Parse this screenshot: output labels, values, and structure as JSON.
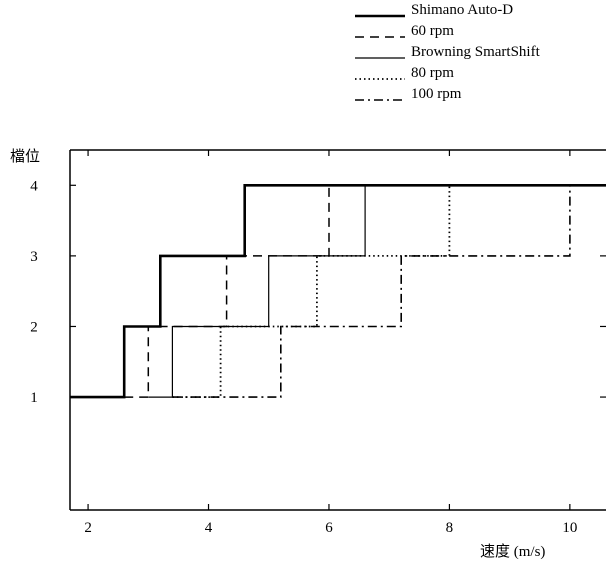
{
  "chart_data": {
    "type": "line",
    "xlabel": "速度 (m/s)",
    "ylabel": "檔位",
    "xlim": [
      1.7,
      10.6
    ],
    "ylim": [
      -0.6,
      4.5
    ],
    "x_ticks": [
      2,
      4,
      6,
      8,
      10
    ],
    "y_ticks": [
      1,
      2,
      3,
      4
    ],
    "grid": false,
    "legend": "top-right",
    "series": [
      {
        "name": "Shimano Auto-D",
        "style": "solid-thick",
        "points": [
          [
            1.7,
            1
          ],
          [
            2.6,
            1
          ],
          [
            2.6,
            2
          ],
          [
            3.2,
            2
          ],
          [
            3.2,
            3
          ],
          [
            4.6,
            3
          ],
          [
            4.6,
            4
          ],
          [
            10.6,
            4
          ]
        ]
      },
      {
        "name": "60 rpm",
        "style": "dashed",
        "points": [
          [
            2.6,
            1
          ],
          [
            3.0,
            1
          ],
          [
            3.0,
            2
          ],
          [
            4.3,
            2
          ],
          [
            4.3,
            3
          ],
          [
            6.0,
            3
          ],
          [
            6.0,
            4
          ],
          [
            6.6,
            4
          ]
        ]
      },
      {
        "name": "Browning SmartShift",
        "style": "solid-thin",
        "points": [
          [
            3.0,
            1
          ],
          [
            3.4,
            1
          ],
          [
            3.4,
            2
          ],
          [
            5.0,
            2
          ],
          [
            5.0,
            3
          ],
          [
            6.6,
            3
          ],
          [
            6.6,
            4
          ],
          [
            8.0,
            4
          ]
        ]
      },
      {
        "name": "80 rpm",
        "style": "dotted",
        "points": [
          [
            3.4,
            1
          ],
          [
            4.2,
            1
          ],
          [
            4.2,
            2
          ],
          [
            5.8,
            2
          ],
          [
            5.8,
            3
          ],
          [
            8.0,
            3
          ],
          [
            8.0,
            4
          ],
          [
            10.0,
            4
          ]
        ]
      },
      {
        "name": "100 rpm",
        "style": "dashdot",
        "points": [
          [
            3.4,
            1
          ],
          [
            5.2,
            1
          ],
          [
            5.2,
            2
          ],
          [
            7.2,
            2
          ],
          [
            7.2,
            3
          ],
          [
            10.0,
            3
          ],
          [
            10.0,
            4
          ]
        ]
      }
    ]
  }
}
